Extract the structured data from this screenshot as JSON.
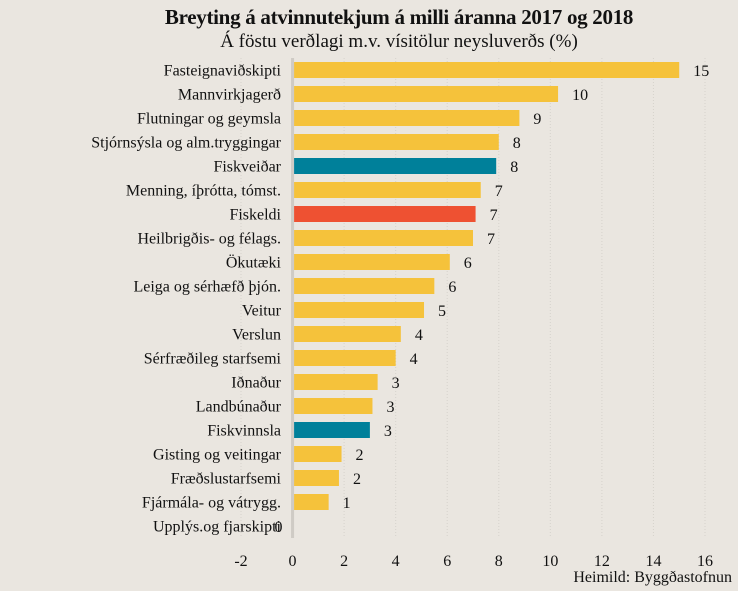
{
  "chart_data": {
    "type": "bar",
    "orientation": "horizontal",
    "title": "Breyting á atvinnutekjum á milli  áranna 2017 og 2018",
    "subtitle": "Á föstu verðlagi m.v. vísitölur neysluverðs (%)",
    "xlabel": "",
    "ylabel": "",
    "xlim": [
      -2,
      16
    ],
    "xticks": [
      -2,
      0,
      2,
      4,
      6,
      8,
      10,
      12,
      14,
      16
    ],
    "grid": "vertical-dotted",
    "source": "Heimild:  Byggðastofnun",
    "colors": {
      "default": "#F5C23B",
      "fisheries": "#00809A",
      "aquaculture": "#EE5132",
      "background": "#EAE6E0",
      "axis": "#CFCBC5",
      "grid": "#D6D2CC"
    },
    "categories": [
      "Fasteignaviðskipti",
      "Mannvirkjagerð",
      "Flutningar og geymsla",
      "Stjórnsýsla og alm.tryggingar",
      "Fiskveiðar",
      "Menning, íþrótta, tómst.",
      "Fiskeldi",
      "Heilbrigðis- og félags.",
      "Ökutæki",
      "Leiga og sérhæfð þjón.",
      "Veitur",
      "Verslun",
      "Sérfræðileg starfsemi",
      "Iðnaður",
      "Landbúnaður",
      "Fiskvinnsla",
      "Gisting og veitingar",
      "Fræðslustarfsemi",
      "Fjármála- og vátrygg.",
      "Upplýs.og fjarskipti"
    ],
    "values": [
      15.0,
      10.3,
      8.8,
      8.0,
      7.9,
      7.3,
      7.1,
      7.0,
      6.1,
      5.5,
      5.1,
      4.2,
      4.0,
      3.3,
      3.1,
      3.0,
      1.9,
      1.8,
      1.4,
      0.0
    ],
    "data_labels": [
      "15",
      "10",
      "9",
      "8",
      "8",
      "7",
      "7",
      "7",
      "6",
      "6",
      "5",
      "4",
      "4",
      "3",
      "3",
      "3",
      "2",
      "2",
      "1",
      "0"
    ],
    "bar_color_keys": [
      "default",
      "default",
      "default",
      "default",
      "fisheries",
      "default",
      "aquaculture",
      "default",
      "default",
      "default",
      "default",
      "default",
      "default",
      "default",
      "default",
      "fisheries",
      "default",
      "default",
      "default",
      "default"
    ]
  }
}
